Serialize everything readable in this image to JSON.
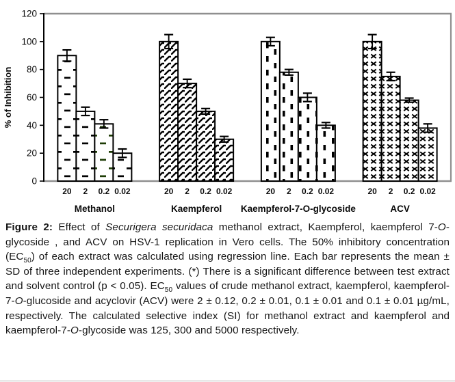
{
  "figure": {
    "caption_segments": [
      {
        "text": "Figure 2:",
        "style": "bold"
      },
      {
        "text": " Effect of ",
        "style": "normal"
      },
      {
        "text": "Securigera securidaca",
        "style": "italic"
      },
      {
        "text": " methanol extract, Kaempferol, kaempferol 7-",
        "style": "normal"
      },
      {
        "text": "O",
        "style": "italic"
      },
      {
        "text": "-glycoside , and ACV on HSV-1 replication in Vero cells. The 50% inhibitory concentration (EC",
        "style": "normal"
      },
      {
        "text": "50",
        "style": "sub"
      },
      {
        "text": ") of each extract was calculated using regression line. Each bar represents the mean ± SD of three independent experiments. (*) There is a significant difference between test extract and solvent control (p < 0.05). EC",
        "style": "normal"
      },
      {
        "text": "50",
        "style": "sub"
      },
      {
        "text": " values of crude methanol extract, kaempferol, kaempferol-7-",
        "style": "normal"
      },
      {
        "text": "O",
        "style": "italic"
      },
      {
        "text": "-glucoside and acyclovir (ACV) were 2 ± 0.12, 0.2 ± 0.01, 0.1 ± 0.01 and 0.1 ± 0.01 µg/mL, respectively. The calculated selective index (SI) for methanol extract and kaempferol and kaempferol-7-",
        "style": "normal"
      },
      {
        "text": "O",
        "style": "italic"
      },
      {
        "text": "-glycoside was 125, 300 and 5000 respectively.",
        "style": "normal"
      }
    ]
  },
  "chart_data": {
    "type": "bar",
    "title": "",
    "xlabel": "",
    "ylabel": "% of Inhibition",
    "ylim": [
      0,
      120
    ],
    "yticks": [
      0,
      20,
      40,
      60,
      80,
      100,
      120
    ],
    "grid": false,
    "legend": "none",
    "error_bars": "mean ± SD, I-beam caps",
    "categories": [
      "20",
      "2",
      "0.2",
      "0.02"
    ],
    "groups": [
      {
        "label": "Methanol",
        "pattern": "horizontal-dash",
        "pattern_overrides": {
          "2": "horizontal-dash-green"
        },
        "values": [
          90,
          50,
          41,
          20
        ],
        "errors": [
          4,
          3,
          3,
          3
        ]
      },
      {
        "label": "Kaempferol",
        "pattern": "diagonal-shingle",
        "values": [
          100,
          70,
          50,
          30
        ],
        "errors": [
          5,
          3,
          2,
          2
        ]
      },
      {
        "label": "Kaempferol-7-O-glycoside",
        "pattern": "vertical-dash",
        "values": [
          100,
          78,
          60,
          40
        ],
        "errors": [
          3,
          2,
          3,
          2
        ]
      },
      {
        "label": "ACV",
        "pattern": "x-marks",
        "values": [
          100,
          75,
          58,
          38
        ],
        "errors": [
          5,
          3,
          1.5,
          3
        ]
      }
    ],
    "colors": {
      "bar_fill": "#ffffff",
      "bar_stroke": "#000000",
      "frame": "#8f8f8f",
      "axis": "#000000",
      "text": "#0a0a0a",
      "green_dash": "#1e3c05"
    }
  }
}
